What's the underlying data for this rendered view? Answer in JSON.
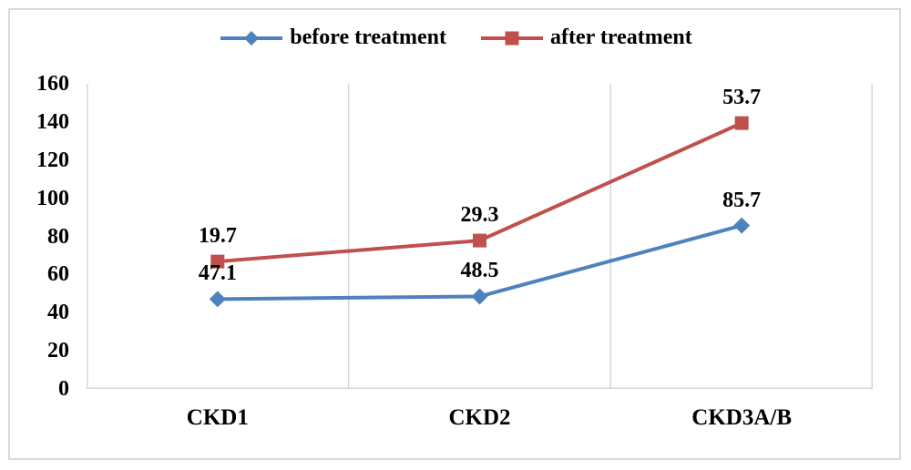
{
  "chart_data": {
    "type": "line",
    "title": "",
    "xlabel": "",
    "ylabel": "",
    "categories": [
      "CKD1",
      "CKD2",
      "CKD3A/B"
    ],
    "series": [
      {
        "name": "before treatment",
        "color": "#4f81bd",
        "marker": "diamond",
        "values": [
          47.1,
          48.5,
          85.7
        ],
        "plotted_values": [
          47.1,
          48.5,
          85.7
        ]
      },
      {
        "name": "after treatment",
        "color": "#c0504d",
        "marker": "square",
        "values": [
          19.7,
          29.3,
          53.7
        ],
        "plotted_values": [
          66.8,
          77.8,
          139.4
        ]
      }
    ],
    "ylim": [
      0,
      160
    ],
    "yticks": [
      0,
      20,
      40,
      60,
      80,
      100,
      120,
      140,
      160
    ],
    "stacking": "after-treatment line is plotted cumulatively (before + after); data labels show per-series values",
    "data_labels_position": "above markers",
    "legend_position": "top-center",
    "grid": "vertical category separators only, no horizontal gridlines",
    "axis_color": "#d6d6d6",
    "text_color": "#000000",
    "frame_border_color": "#d9d9d9"
  }
}
